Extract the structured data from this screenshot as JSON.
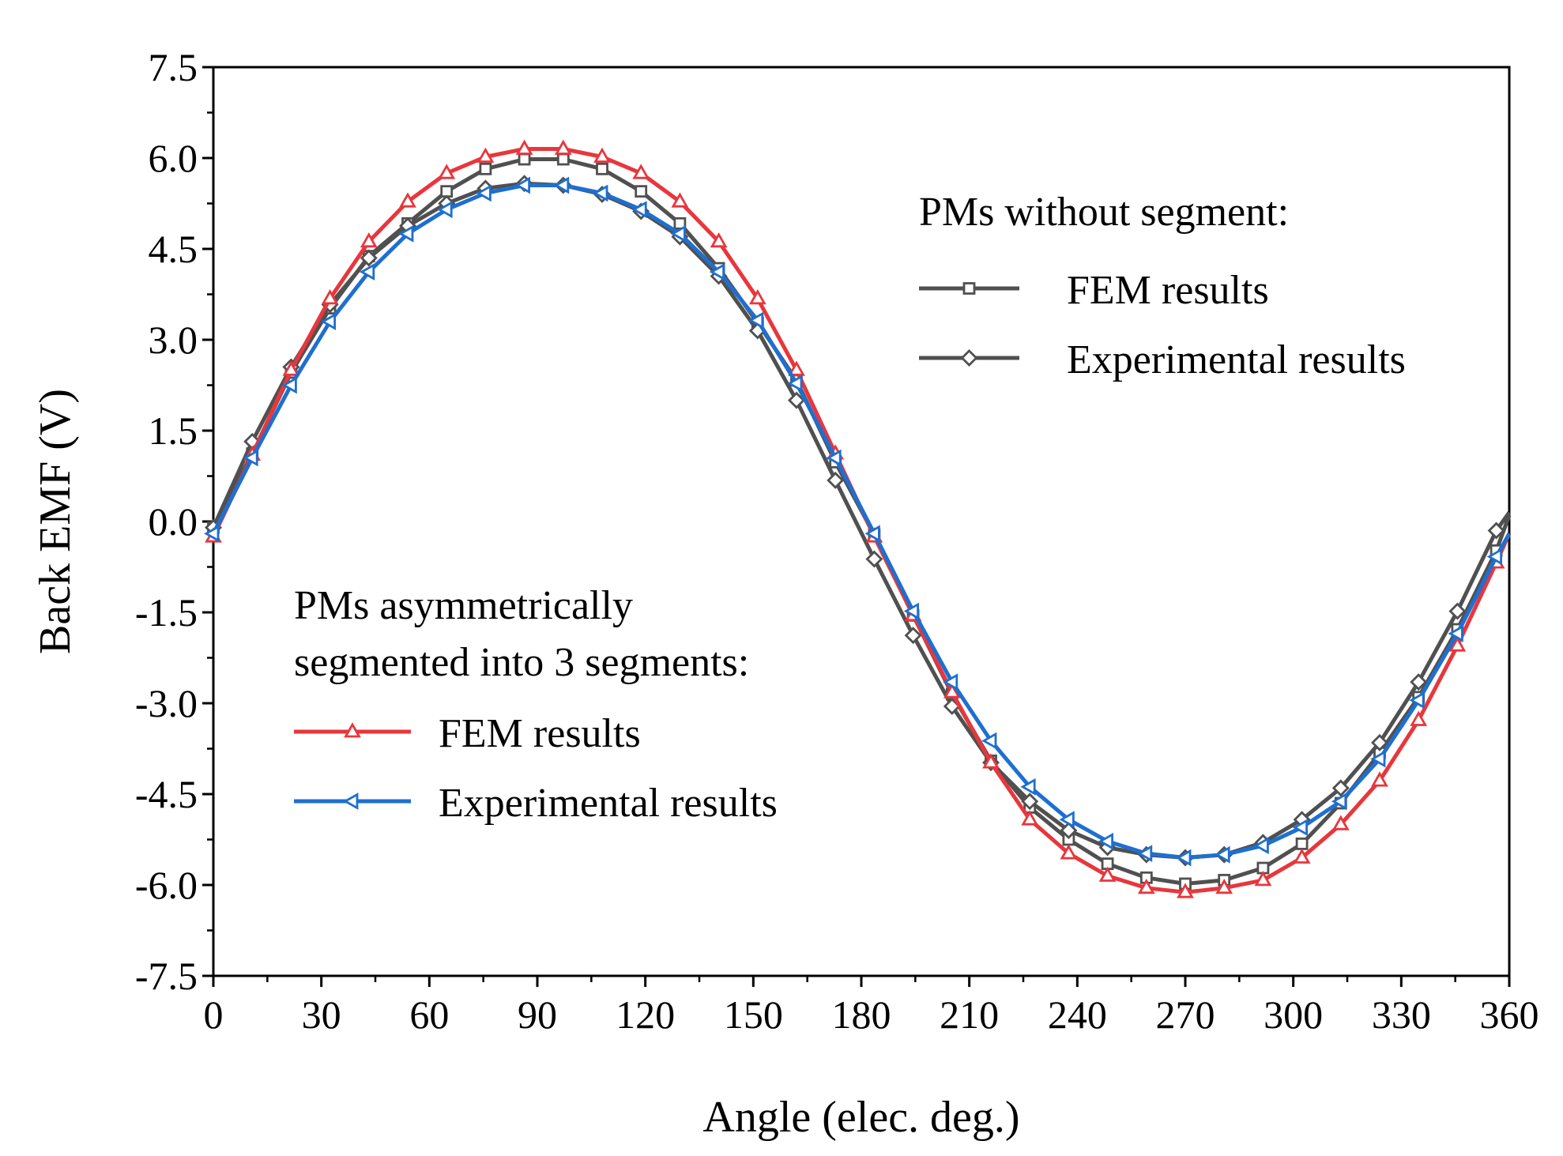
{
  "chart_data": {
    "type": "line",
    "xlabel": "Angle (elec. deg.)",
    "ylabel": "Back EMF (V)",
    "xlim": [
      0,
      360
    ],
    "ylim": [
      -7.5,
      7.5
    ],
    "xticks": [
      0,
      30,
      60,
      90,
      120,
      150,
      180,
      210,
      240,
      270,
      300,
      330,
      360
    ],
    "xtick_labels": [
      "0",
      "30",
      "60",
      "90",
      "120",
      "150",
      "180",
      "210",
      "240",
      "270",
      "300",
      "330",
      "360"
    ],
    "yticks": [
      7.5,
      6.0,
      4.5,
      3.0,
      1.5,
      0.0,
      -1.5,
      -3.0,
      -4.5,
      -6.0,
      -7.5
    ],
    "ytick_labels": [
      "7.5",
      "6.0",
      "4.5",
      "3.0",
      "1.5",
      "0.0",
      "-1.5",
      "-3.0",
      "-4.5",
      "-6.0",
      "-7.5"
    ],
    "grid": false,
    "x": [
      0,
      10.8,
      21.6,
      32.4,
      43.2,
      54,
      64.8,
      75.6,
      86.4,
      97.2,
      108,
      118.8,
      129.6,
      140.4,
      151.2,
      162,
      172.8,
      183.6,
      194.4,
      205.2,
      216,
      226.8,
      237.6,
      248.4,
      259.2,
      270,
      280.8,
      291.6,
      302.4,
      313.2,
      324,
      334.8,
      345.6,
      356.4,
      360
    ],
    "series": [
      {
        "name": "FEM results (PMs without segment)",
        "group": "PMs without segment:",
        "legend_label": "FEM results",
        "color": "#505050",
        "marker": "square",
        "values": [
          -0.1,
          1.12,
          2.46,
          3.52,
          4.38,
          4.92,
          5.45,
          5.82,
          5.98,
          5.98,
          5.82,
          5.45,
          4.92,
          4.18,
          3.28,
          2.33,
          0.98,
          -0.22,
          -1.55,
          -2.85,
          -3.95,
          -4.72,
          -5.25,
          -5.65,
          -5.88,
          -5.98,
          -5.92,
          -5.72,
          -5.32,
          -4.65,
          -3.82,
          -2.9,
          -1.78,
          -0.48,
          0.1
        ]
      },
      {
        "name": "Experimental results (PMs without segment)",
        "group": "PMs without segment:",
        "legend_label": "Experimental results",
        "color": "#505050",
        "marker": "diamond",
        "values": [
          -0.1,
          1.32,
          2.55,
          3.58,
          4.35,
          4.88,
          5.25,
          5.5,
          5.58,
          5.55,
          5.4,
          5.12,
          4.7,
          4.05,
          3.15,
          2.0,
          0.68,
          -0.62,
          -1.88,
          -3.05,
          -3.98,
          -4.62,
          -5.1,
          -5.38,
          -5.5,
          -5.55,
          -5.5,
          -5.3,
          -4.92,
          -4.4,
          -3.65,
          -2.65,
          -1.48,
          -0.15,
          0.15
        ]
      },
      {
        "name": "FEM results (PMs asymmetrically segmented into 3 segments)",
        "group": "PMs asymmetrically segmented into 3 segments:",
        "legend_label": "FEM results",
        "color": "#e8363c",
        "marker": "triangle-up",
        "values": [
          -0.25,
          1.1,
          2.5,
          3.68,
          4.62,
          5.28,
          5.75,
          6.02,
          6.15,
          6.15,
          6.02,
          5.75,
          5.28,
          4.62,
          3.68,
          2.5,
          1.12,
          -0.25,
          -1.55,
          -2.82,
          -3.98,
          -4.92,
          -5.48,
          -5.85,
          -6.05,
          -6.12,
          -6.05,
          -5.92,
          -5.55,
          -5.0,
          -4.28,
          -3.28,
          -2.05,
          -0.68,
          -0.2
        ]
      },
      {
        "name": "Experimental results (PMs asymmetrically segmented into 3 segments)",
        "group": "PMs asymmetrically segmented into 3 segments:",
        "legend_label": "Experimental results",
        "color": "#1e6fd0",
        "marker": "triangle-left",
        "values": [
          -0.2,
          1.05,
          2.25,
          3.3,
          4.12,
          4.75,
          5.15,
          5.42,
          5.55,
          5.55,
          5.42,
          5.15,
          4.75,
          4.12,
          3.32,
          2.28,
          1.05,
          -0.2,
          -1.48,
          -2.65,
          -3.62,
          -4.38,
          -4.92,
          -5.28,
          -5.48,
          -5.55,
          -5.5,
          -5.35,
          -5.05,
          -4.62,
          -3.92,
          -2.95,
          -1.85,
          -0.58,
          -0.2
        ]
      }
    ],
    "legend": {
      "group1_title": "PMs without segment:",
      "group2_title_line1": "PMs asymmetrically",
      "group2_title_line2": "segmented into 3 segments:"
    }
  }
}
